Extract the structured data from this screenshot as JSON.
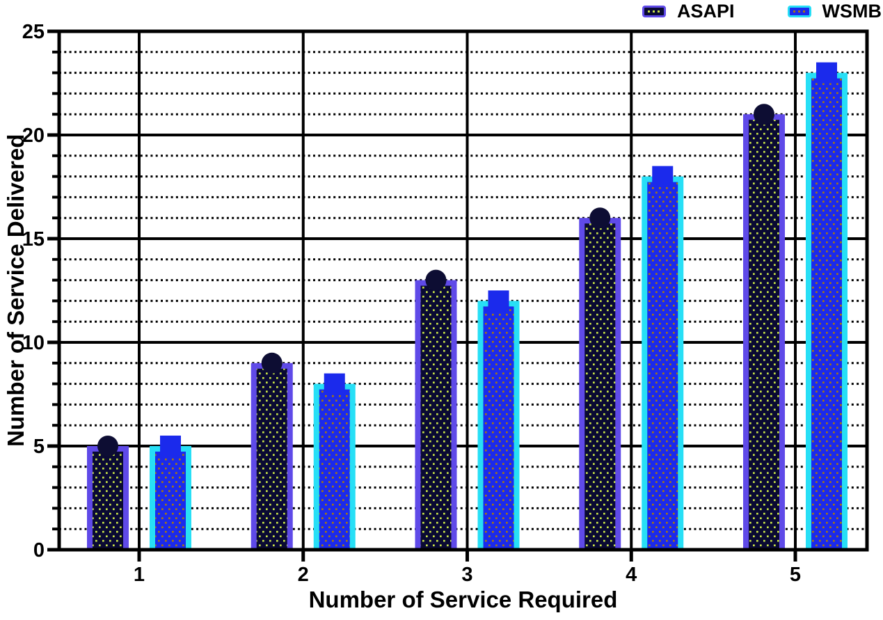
{
  "chart_data": {
    "type": "bar",
    "title": "",
    "xlabel": "Number of Service Required",
    "ylabel": "Number of Service Delivered",
    "categories": [
      "1",
      "2",
      "3",
      "4",
      "5"
    ],
    "series": [
      {
        "name": "ASAPI",
        "values": [
          5,
          9,
          13,
          16,
          21
        ],
        "marker": "circle",
        "bar_fill": "#0a0a33",
        "bar_border": "#5f4ae8",
        "dot_color": "#c8e446",
        "marker_color": "#0d0d33"
      },
      {
        "name": "WSMB",
        "values": [
          5,
          8,
          12,
          18,
          23
        ],
        "marker": "square",
        "bar_fill": "#1b2aec",
        "bar_border": "#27dff6",
        "dot_color": "#a27712",
        "marker_color": "#1b2aec"
      }
    ],
    "ylim": [
      0,
      25
    ],
    "y_major_step": 5,
    "y_minor_step": 1,
    "y_major_ticks": [
      0,
      5,
      10,
      15,
      20,
      25
    ],
    "grid": "major solid black horizontal+vertical, minor dotted black horizontal",
    "legend_position": "top-right",
    "frame_color": "#000000",
    "background_color": "#ffffff"
  }
}
